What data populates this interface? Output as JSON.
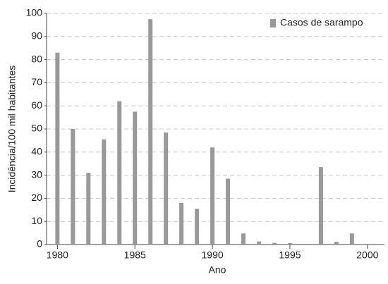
{
  "chart_data": {
    "type": "bar",
    "x_label": "Ano",
    "y_label": "Incidência/100 mil habitantes",
    "x": [
      1980,
      1981,
      1982,
      1983,
      1984,
      1985,
      1986,
      1987,
      1988,
      1989,
      1990,
      1991,
      1992,
      1993,
      1994,
      1995,
      1997,
      1998,
      1999
    ],
    "series": [
      {
        "name": "Casos de sarampo",
        "color": "#999999",
        "values": [
          83,
          50,
          31,
          45.5,
          62,
          57.5,
          97.5,
          48.5,
          18,
          15.5,
          42,
          28.5,
          4.8,
          1.3,
          0.7,
          0.6,
          33.5,
          1.2,
          4.8
        ]
      }
    ],
    "xlim": [
      1979.3,
      2001.1
    ],
    "xticks": [
      1980,
      1985,
      1990,
      1995,
      2000
    ],
    "ylim": [
      0,
      100
    ],
    "yticks": [
      0,
      10,
      20,
      30,
      40,
      50,
      60,
      70,
      80,
      90,
      100
    ],
    "grid": true,
    "legend": "top-right"
  }
}
